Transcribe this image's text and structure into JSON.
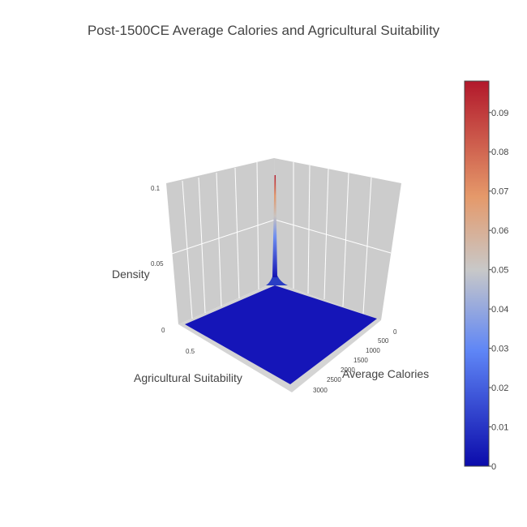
{
  "chart_data": {
    "type": "surface",
    "title": "Post-1500CE Average Calories and Agricultural Suitability",
    "axes": {
      "x": {
        "label": "Average Calories",
        "ticks": [
          "0",
          "500",
          "1000",
          "1500",
          "2000",
          "2500",
          "3000"
        ],
        "range": [
          0,
          3000
        ]
      },
      "y": {
        "label": "Agricultural Suitability",
        "ticks": [
          "0.5"
        ],
        "range": [
          0,
          1
        ]
      },
      "z": {
        "label": "Density",
        "ticks": [
          "0",
          "0.05",
          "0.1"
        ],
        "range": [
          0,
          0.1
        ]
      }
    },
    "surface": {
      "description_values": "density concentrated near zero calories, zero suitability",
      "peak": {
        "x": 0,
        "y": 0,
        "z": 0.098
      },
      "baseline_z": 0
    },
    "colorbar": {
      "ticks": [
        "0",
        "0.01",
        "0.02",
        "0.03",
        "0.04",
        "0.05",
        "0.06",
        "0.07",
        "0.08",
        "0.09"
      ],
      "range": [
        0,
        0.098
      ],
      "colorscale": [
        "#0b0bab",
        "#5f86f6",
        "#c8c8c8",
        "#e5996a",
        "#b2182b"
      ]
    },
    "grid": true
  }
}
